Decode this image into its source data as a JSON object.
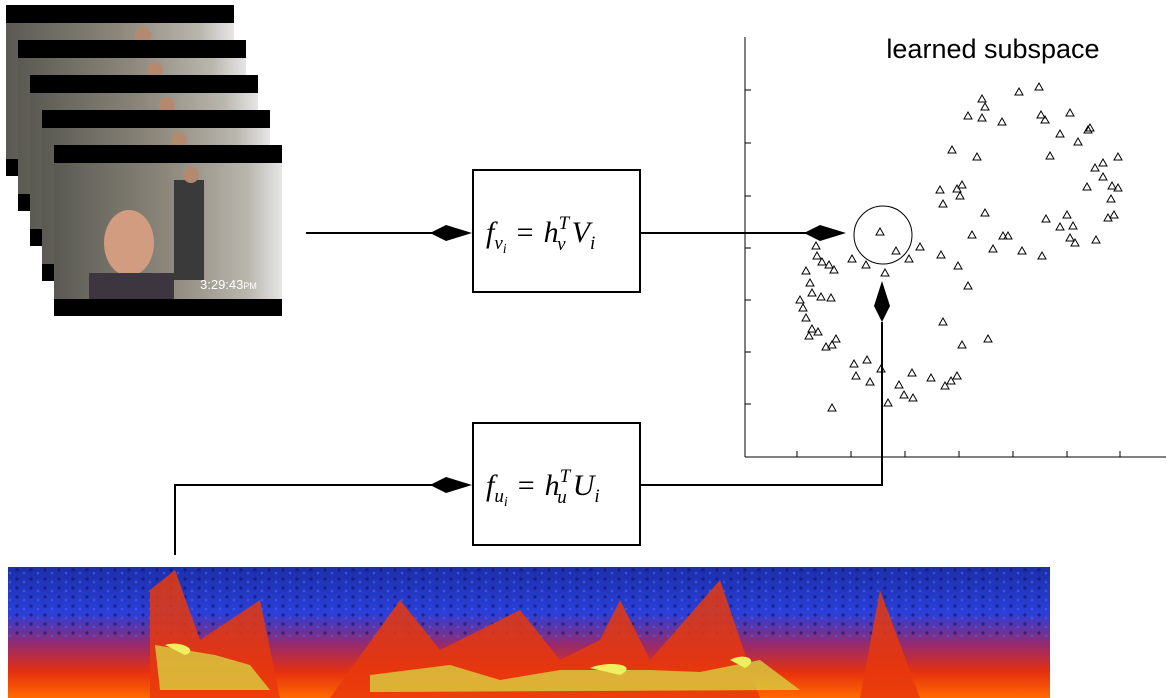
{
  "subspace_label": "learned subspace",
  "video": {
    "timestamp": "3:29:43",
    "timestamp_suffix": "PM"
  },
  "video_formula": {
    "lhs": "f",
    "lhs_sub": "v",
    "lhs_subsub": "i",
    "eq": "=",
    "h": "h",
    "h_sup": "T",
    "h_sub": "v",
    "rhs": "V",
    "rhs_sub": "i"
  },
  "audio_formula": {
    "lhs": "f",
    "lhs_sub": "u",
    "lhs_subsub": "i",
    "eq": "=",
    "h": "h",
    "h_sup": "T",
    "h_sub": "u",
    "rhs": "U",
    "rhs_sub": "i"
  }
}
